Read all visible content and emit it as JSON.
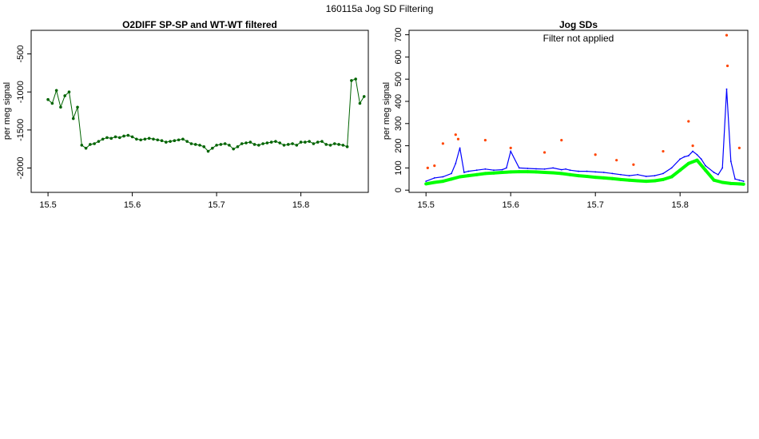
{
  "page": {
    "title": "160115a   Jog SD Filtering"
  },
  "chart_data": [
    {
      "type": "scatter",
      "title": "O2DIFF SP-SP and WT-WT filtered",
      "xlabel": "",
      "ylabel": "per meg signal",
      "xlim": [
        15.48,
        15.88
      ],
      "ylim": [
        -2320,
        -190
      ],
      "xticks": [
        "15.5",
        "15.6",
        "15.7",
        "15.8"
      ],
      "yticks": [
        "-500",
        "-1000",
        "-1500",
        "-2000"
      ],
      "colors": {
        "points": "#006400"
      },
      "series": [
        {
          "name": "",
          "x": [
            15.5,
            15.505,
            15.51,
            15.515,
            15.52,
            15.525,
            15.53,
            15.535,
            15.54,
            15.545,
            15.55,
            15.555,
            15.56,
            15.565,
            15.57,
            15.575,
            15.58,
            15.585,
            15.59,
            15.595,
            15.6,
            15.605,
            15.61,
            15.615,
            15.62,
            15.625,
            15.63,
            15.635,
            15.64,
            15.645,
            15.65,
            15.655,
            15.66,
            15.665,
            15.67,
            15.675,
            15.68,
            15.685,
            15.69,
            15.695,
            15.7,
            15.705,
            15.71,
            15.715,
            15.72,
            15.725,
            15.73,
            15.735,
            15.74,
            15.745,
            15.75,
            15.755,
            15.76,
            15.765,
            15.77,
            15.775,
            15.78,
            15.785,
            15.79,
            15.795,
            15.8,
            15.805,
            15.81,
            15.815,
            15.82,
            15.825,
            15.83,
            15.835,
            15.84,
            15.845,
            15.85,
            15.855,
            15.86,
            15.865,
            15.87,
            15.875
          ],
          "y": [
            -1100,
            -1150,
            -980,
            -1200,
            -1050,
            -1000,
            -1350,
            -1200,
            -1700,
            -1740,
            -1690,
            -1680,
            -1650,
            -1620,
            -1600,
            -1610,
            -1590,
            -1600,
            -1580,
            -1570,
            -1590,
            -1620,
            -1630,
            -1620,
            -1610,
            -1620,
            -1630,
            -1640,
            -1660,
            -1650,
            -1640,
            -1630,
            -1620,
            -1650,
            -1680,
            -1690,
            -1700,
            -1720,
            -1780,
            -1740,
            -1700,
            -1690,
            -1680,
            -1700,
            -1750,
            -1720,
            -1680,
            -1670,
            -1660,
            -1690,
            -1700,
            -1680,
            -1670,
            -1660,
            -1650,
            -1670,
            -1700,
            -1690,
            -1680,
            -1700,
            -1660,
            -1660,
            -1650,
            -1680,
            -1660,
            -1650,
            -1690,
            -1700,
            -1680,
            -1690,
            -1700,
            -1720,
            -850,
            -830,
            -1150,
            -1060
          ]
        }
      ]
    },
    {
      "type": "line",
      "title": "Jog SDs",
      "annotation": "Filter not applied",
      "xlabel": "",
      "ylabel": "per meg signal",
      "xlim": [
        15.48,
        15.88
      ],
      "ylim": [
        -10,
        720
      ],
      "xticks": [
        "15.5",
        "15.6",
        "15.7",
        "15.8"
      ],
      "yticks": [
        "0",
        "100",
        "200",
        "300",
        "400",
        "500",
        "600",
        "700"
      ],
      "colors": {
        "line": "#0000ff",
        "points": "#00ff00",
        "outliers": "#ff4500"
      },
      "series": [
        {
          "name": "",
          "x": [
            15.5,
            15.51,
            15.52,
            15.53,
            15.535,
            15.54,
            15.545,
            15.55,
            15.56,
            15.57,
            15.58,
            15.59,
            15.595,
            15.6,
            15.61,
            15.62,
            15.63,
            15.64,
            15.65,
            15.66,
            15.665,
            15.67,
            15.68,
            15.69,
            15.7,
            15.71,
            15.72,
            15.73,
            15.74,
            15.75,
            15.76,
            15.77,
            15.78,
            15.79,
            15.8,
            15.805,
            15.81,
            15.815,
            15.82,
            15.825,
            15.83,
            15.84,
            15.845,
            15.85,
            15.855,
            15.86,
            15.865,
            15.87,
            15.875
          ],
          "y": [
            40,
            55,
            60,
            75,
            120,
            190,
            80,
            85,
            90,
            95,
            90,
            92,
            100,
            175,
            100,
            98,
            96,
            95,
            100,
            92,
            95,
            90,
            85,
            85,
            82,
            80,
            75,
            70,
            65,
            70,
            62,
            65,
            75,
            100,
            140,
            150,
            155,
            175,
            160,
            140,
            110,
            80,
            70,
            100,
            455,
            130,
            50,
            45,
            40
          ]
        },
        {
          "name": "",
          "x": [
            15.5,
            15.51,
            15.52,
            15.53,
            15.54,
            15.55,
            15.56,
            15.57,
            15.58,
            15.59,
            15.6,
            15.61,
            15.62,
            15.63,
            15.64,
            15.65,
            15.66,
            15.67,
            15.68,
            15.69,
            15.7,
            15.71,
            15.72,
            15.73,
            15.74,
            15.75,
            15.76,
            15.77,
            15.78,
            15.79,
            15.8,
            15.81,
            15.82,
            15.83,
            15.84,
            15.85,
            15.86,
            15.87,
            15.875
          ],
          "y": [
            28,
            35,
            40,
            50,
            60,
            65,
            70,
            75,
            77,
            80,
            82,
            83,
            83,
            82,
            80,
            78,
            75,
            70,
            65,
            62,
            58,
            55,
            52,
            48,
            45,
            42,
            40,
            42,
            48,
            60,
            90,
            120,
            135,
            90,
            45,
            35,
            30,
            28,
            27
          ]
        }
      ],
      "outliers": {
        "x": [
          15.502,
          15.51,
          15.52,
          15.535,
          15.538,
          15.57,
          15.6,
          15.64,
          15.66,
          15.7,
          15.725,
          15.745,
          15.78,
          15.81,
          15.815,
          15.855,
          15.856,
          15.87
        ],
        "y": [
          100,
          110,
          210,
          250,
          230,
          225,
          190,
          170,
          225,
          160,
          135,
          115,
          175,
          310,
          200,
          698,
          560,
          190
        ]
      }
    }
  ]
}
